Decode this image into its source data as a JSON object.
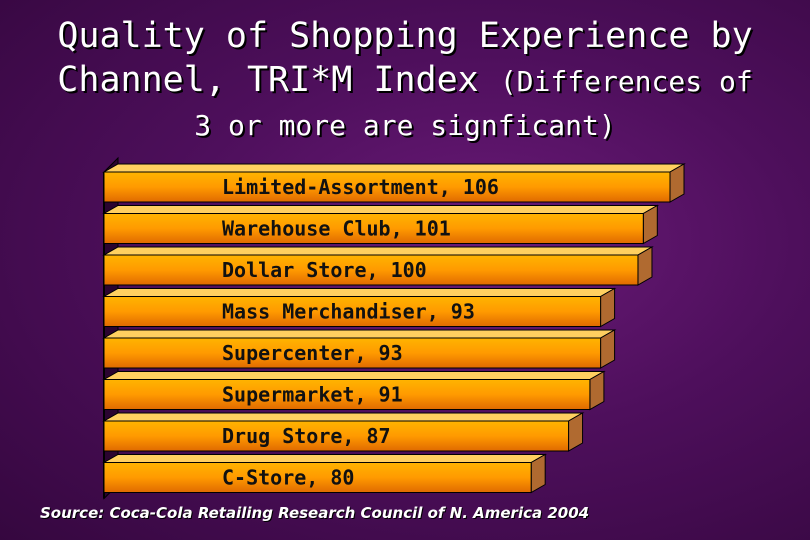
{
  "title": {
    "line1": "Quality of Shopping Experience by",
    "line2_main": "Channel, TRI*M Index",
    "line2_note": "(Differences of",
    "line3": "3 or more are signficant)"
  },
  "chart_data": {
    "type": "bar",
    "orientation": "horizontal",
    "categories": [
      "Limited-Assortment",
      "Warehouse Club",
      "Dollar Store",
      "Mass Merchandiser",
      "Supercenter",
      "Supermarket",
      "Drug Store",
      "C-Store"
    ],
    "values": [
      106,
      101,
      100,
      93,
      93,
      91,
      87,
      80
    ],
    "labels": [
      "Limited-Assortment, 106",
      "Warehouse Club, 101",
      "Dollar Store, 100",
      "Mass Merchandiser, 93",
      "Supercenter, 93",
      "Supermarket, 91",
      "Drug Store, 87",
      "C-Store, 80"
    ],
    "bar_color": "#ff9a00",
    "xlim": [
      0,
      106
    ]
  },
  "source": "Source: Coca-Cola Retailing Research Council of N. America 2004"
}
